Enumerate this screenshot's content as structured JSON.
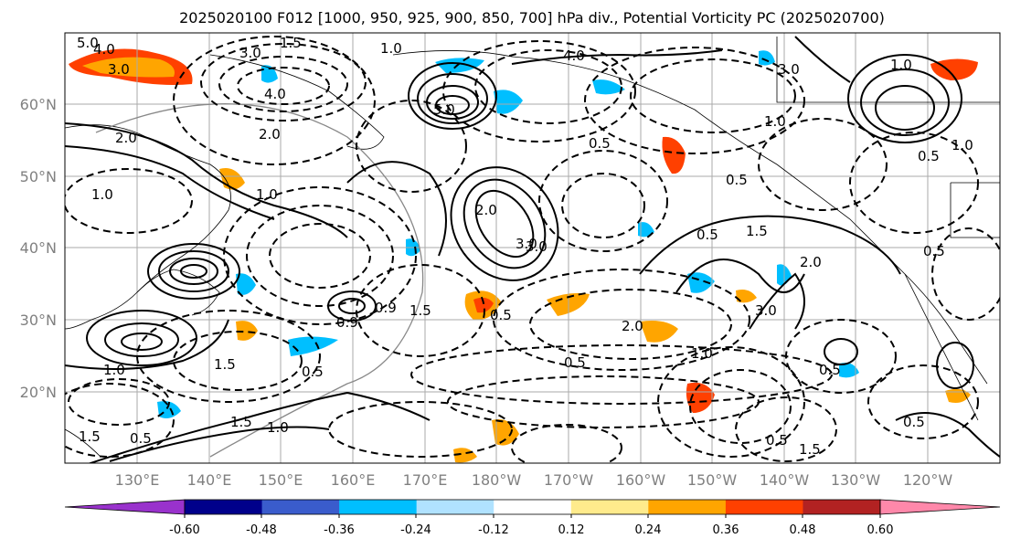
{
  "title": "2025020100 F012 [1000, 950, 925, 900, 850, 700] hPa div., Potential Vorticity PC (2025020700)",
  "map": {
    "lat_labels": [
      "60°N",
      "50°N",
      "40°N",
      "30°N",
      "20°N"
    ],
    "lon_labels": [
      "130°E",
      "140°E",
      "150°E",
      "160°E",
      "170°E",
      "180°W",
      "170°W",
      "160°W",
      "150°W",
      "140°W",
      "130°W",
      "120°W"
    ],
    "contour_labels": [
      "4.0",
      "3.0",
      "5.0",
      "3.0",
      "1.5",
      "1.0",
      "4.0",
      "2.0",
      "5.0",
      "4.0",
      "3.0",
      "1.0",
      "2.0",
      "0.5",
      "0.5",
      "1.0",
      "1.0",
      "1.0",
      "2.0",
      "0.5",
      "1.0",
      "3.0",
      "2.0",
      "1.5",
      "0.9",
      "0.9",
      "1.5",
      "1.0",
      "1.5",
      "0.5",
      "2.0",
      "3.0",
      "0.5",
      "1.0",
      "0.5",
      "3.0",
      "0.5",
      "0.5",
      "1.5",
      "1.0",
      "0.5",
      "0.5",
      "0.5",
      "1.5",
      "1.5",
      "0.5"
    ]
  },
  "colorbar": {
    "colors": [
      "#9932cc",
      "#00008b",
      "#3a5ccc",
      "#00bfff",
      "#b0e2ff",
      "#ffffff",
      "#ffeb8c",
      "#ffa500",
      "#ff4000",
      "#b22222",
      "#ff88aa"
    ],
    "tick_labels": [
      "-0.60",
      "-0.48",
      "-0.36",
      "-0.24",
      "-0.12",
      "0.12",
      "0.24",
      "0.36",
      "0.48",
      "0.60"
    ]
  }
}
